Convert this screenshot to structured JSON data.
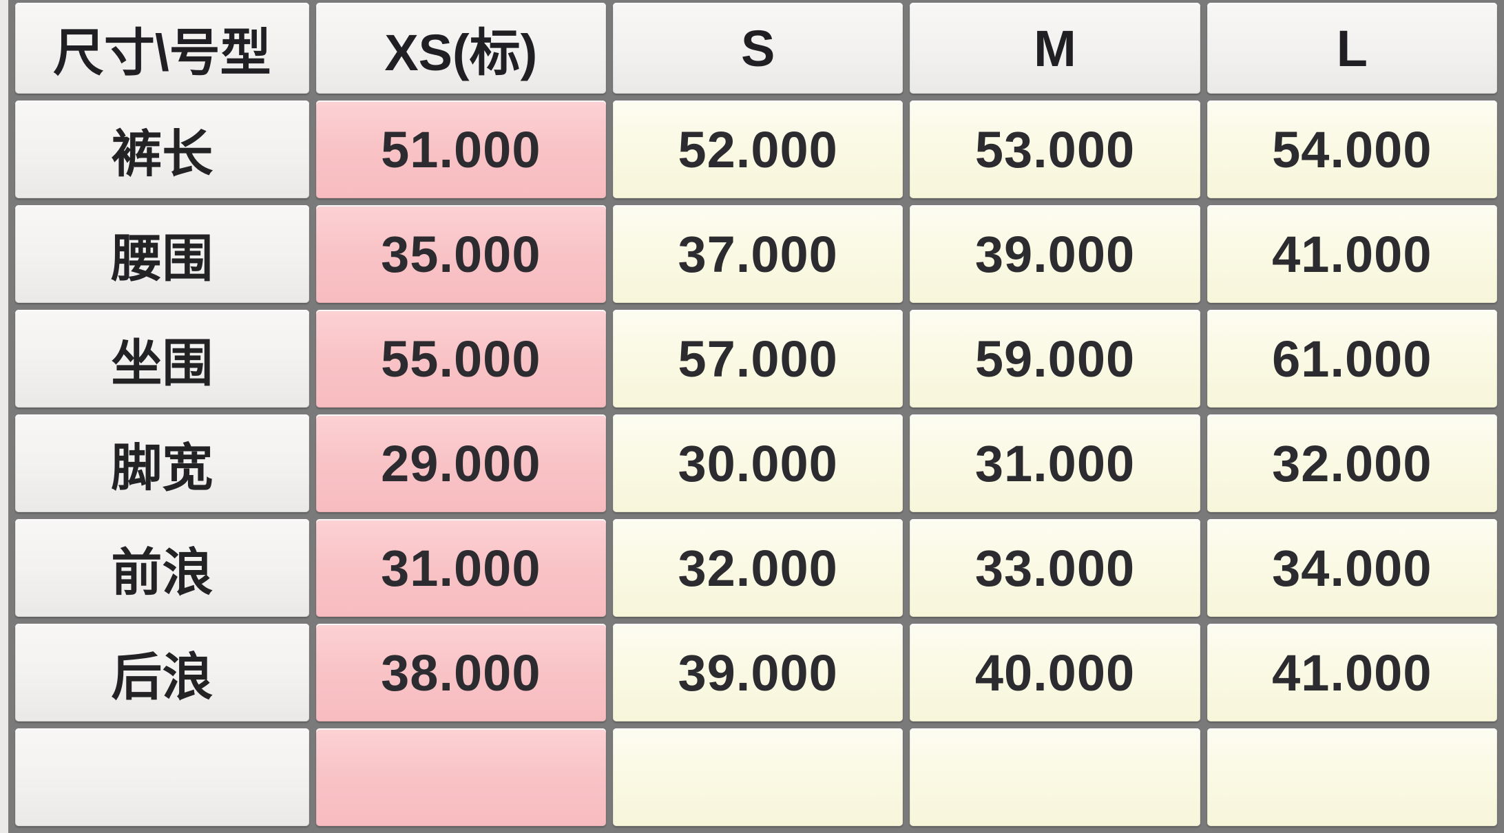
{
  "table": {
    "corner_header": "尺寸\\号型",
    "columns": [
      {
        "id": "xs",
        "label": "XS(标)",
        "is_base_size": true
      },
      {
        "id": "s",
        "label": "S",
        "is_base_size": false
      },
      {
        "id": "m",
        "label": "M",
        "is_base_size": false
      },
      {
        "id": "l",
        "label": "L",
        "is_base_size": false
      }
    ],
    "rows": [
      {
        "label": "裤长",
        "values": [
          "51.000",
          "52.000",
          "53.000",
          "54.000"
        ]
      },
      {
        "label": "腰围",
        "values": [
          "35.000",
          "37.000",
          "39.000",
          "41.000"
        ]
      },
      {
        "label": "坐围",
        "values": [
          "55.000",
          "57.000",
          "59.000",
          "61.000"
        ]
      },
      {
        "label": "脚宽",
        "values": [
          "29.000",
          "30.000",
          "31.000",
          "32.000"
        ]
      },
      {
        "label": "前浪",
        "values": [
          "31.000",
          "32.000",
          "33.000",
          "34.000"
        ]
      },
      {
        "label": "后浪",
        "values": [
          "38.000",
          "39.000",
          "40.000",
          "41.000"
        ]
      }
    ],
    "partial_row_visible_at_bottom": true,
    "colors": {
      "base_size_column_bg": "#f9c4c7",
      "value_cell_bg": "#faf9e3",
      "header_cell_bg": "#f2f1ef",
      "grid": "#7a7a7a",
      "text": "#2b2b30"
    }
  }
}
